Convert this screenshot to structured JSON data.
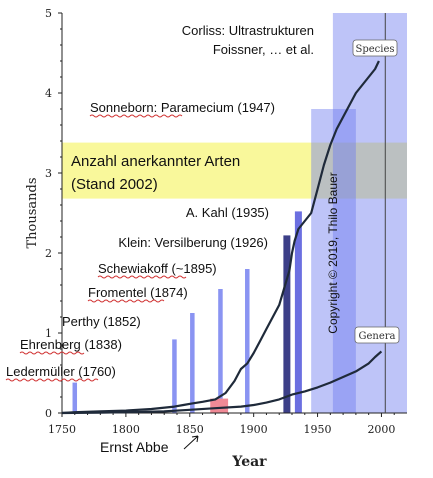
{
  "chart_data": {
    "type": "line",
    "xlabel": "Year",
    "ylabel": "Thousands",
    "xlim": [
      1750,
      2020
    ],
    "ylim": [
      0,
      5
    ],
    "x_ticks": [
      1750,
      1800,
      1850,
      1900,
      1950,
      2000
    ],
    "y_ticks": [
      0,
      1,
      2,
      3,
      4,
      5
    ],
    "series": [
      {
        "name": "Species",
        "color": "#1f2a3a",
        "points": [
          [
            1750,
            0
          ],
          [
            1760,
            0.01
          ],
          [
            1780,
            0.02
          ],
          [
            1800,
            0.03
          ],
          [
            1820,
            0.05
          ],
          [
            1838,
            0.08
          ],
          [
            1845,
            0.1
          ],
          [
            1852,
            0.12
          ],
          [
            1860,
            0.14
          ],
          [
            1870,
            0.17
          ],
          [
            1878,
            0.25
          ],
          [
            1885,
            0.4
          ],
          [
            1890,
            0.55
          ],
          [
            1895,
            0.62
          ],
          [
            1900,
            0.75
          ],
          [
            1905,
            0.9
          ],
          [
            1910,
            1.05
          ],
          [
            1915,
            1.2
          ],
          [
            1920,
            1.35
          ],
          [
            1925,
            1.62
          ],
          [
            1928,
            1.78
          ],
          [
            1930,
            2.0
          ],
          [
            1932,
            2.15
          ],
          [
            1935,
            2.3
          ],
          [
            1940,
            2.4
          ],
          [
            1945,
            2.5
          ],
          [
            1950,
            2.8
          ],
          [
            1955,
            3.1
          ],
          [
            1960,
            3.35
          ],
          [
            1965,
            3.55
          ],
          [
            1970,
            3.7
          ],
          [
            1975,
            3.85
          ],
          [
            1980,
            4.0
          ],
          [
            1985,
            4.1
          ],
          [
            1990,
            4.2
          ],
          [
            1995,
            4.3
          ],
          [
            1998,
            4.4
          ]
        ]
      },
      {
        "name": "Genera",
        "color": "#1f2a3a",
        "points": [
          [
            1750,
            0
          ],
          [
            1780,
            0.005
          ],
          [
            1800,
            0.01
          ],
          [
            1830,
            0.02
          ],
          [
            1850,
            0.04
          ],
          [
            1870,
            0.06
          ],
          [
            1890,
            0.08
          ],
          [
            1900,
            0.1
          ],
          [
            1910,
            0.13
          ],
          [
            1920,
            0.17
          ],
          [
            1930,
            0.23
          ],
          [
            1940,
            0.27
          ],
          [
            1950,
            0.32
          ],
          [
            1960,
            0.38
          ],
          [
            1970,
            0.45
          ],
          [
            1980,
            0.52
          ],
          [
            1990,
            0.62
          ],
          [
            1995,
            0.7
          ],
          [
            2000,
            0.77
          ]
        ]
      }
    ],
    "series_labels": [
      "Species",
      "Genera"
    ],
    "bars": [
      {
        "year": 1760,
        "height": 0.38,
        "color": "#8a94f2",
        "label": "Ledermüller (1760)"
      },
      {
        "year": 1838,
        "height": 0.92,
        "color": "#8a94f2",
        "label": "Ehrenberg (1838)"
      },
      {
        "year": 1852,
        "height": 1.25,
        "color": "#8a94f2",
        "label": "Perthy (1852)"
      },
      {
        "year": 1874,
        "height": 1.55,
        "color": "#8a94f2",
        "label": "Fromentel (1874)"
      },
      {
        "year": 1895,
        "height": 1.8,
        "color": "#8a94f2",
        "label": "Schewiakoff (~1895)"
      },
      {
        "year": 1926,
        "height": 2.22,
        "color": "#3c3f88",
        "label": "Klein: Versilberung (1926)"
      },
      {
        "year": 1935,
        "height": 2.52,
        "color": "#6b6fe0",
        "label": "A. Kahl (1935)"
      }
    ],
    "bands": [
      {
        "x0": 1945,
        "x1": 1980,
        "y0": 0,
        "y1": 3.8,
        "color": "#6f7cf0",
        "opacity": 0.45,
        "label": "Sonneborn: Paramecium (1947)"
      },
      {
        "x0": 1962,
        "x1": 2020,
        "y0": 0,
        "y1": 5,
        "color": "#6f7cf0",
        "opacity": 0.45,
        "label": "Corliss: Ultrastrukturen\nFoissner, … et al."
      }
    ],
    "marker": {
      "x0": 1866,
      "x1": 1880,
      "y0": 0,
      "y1": 0.18,
      "color": "#f08a96",
      "label": "Ernst Abbe"
    },
    "highlight": {
      "x0": 1750,
      "x1": 2020,
      "y0": 2.68,
      "y1": 3.38,
      "color": "#f7f57a",
      "label": "Anzahl anerkannter Arten\n(Stand 2002)"
    },
    "copyright": "Copyright © 2019, Thilo Bauer",
    "vline_x": 2003
  }
}
